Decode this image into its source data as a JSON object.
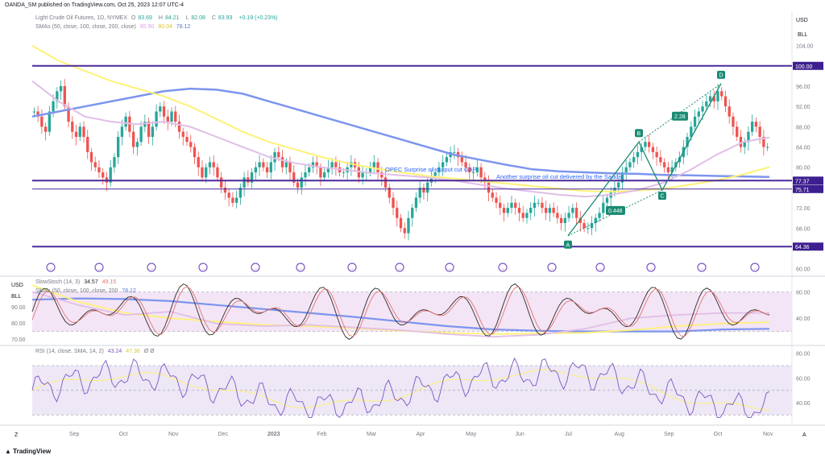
{
  "header": {
    "publisher": "OANDA_SM published on TradingView.com, Oct 25, 2023 12:07 UTC-4"
  },
  "main_pane": {
    "title": "Light Crude Oil Futures, 1D, NYMEX",
    "ohlc": {
      "o_label": "O",
      "o": "83.69",
      "h_label": "H",
      "h": "84.21",
      "l_label": "L",
      "l": "82.08",
      "c_label": "C",
      "c": "83.93",
      "change": "+0.19 (+0.23%)"
    },
    "sma_legend": {
      "label": "SMAs (50, close, 100, close, 200, close)",
      "v1": "85.90",
      "v2": "80.04",
      "v3": "78.12"
    },
    "currency": "USD",
    "unit": "BLL"
  },
  "stoch_pane": {
    "label": "SlowStoch (14, 3)",
    "k": "34.57",
    "d": "49.15",
    "sma_label": "SMAs (50, close, 100, close, 200",
    "sma_value": "78.12",
    "currency": "USD",
    "unit": "BLL"
  },
  "rsi_pane": {
    "label": "RSI (14, close, SMA, 14, 2)",
    "v1": "43.24",
    "v2": "47.36",
    "extra": "Ø Ø"
  },
  "footer": {
    "brand": "TradingView"
  },
  "corner": {
    "left": "Z",
    "right": "A"
  },
  "colors": {
    "up": "#26a69a",
    "down": "#ef5350",
    "sma50": "#e1bee7",
    "sma100": "#fff176",
    "sma200": "#7c95ee",
    "level": "#4a2a9a",
    "level_label_bg": "#3d1f8f",
    "rsi": "#7e57c2",
    "stoch_k": "#2b2b2b",
    "stoch_d": "#e57373",
    "accent": "#1a8a73"
  },
  "chart_data": [
    {
      "type": "candlestick",
      "title": "Light Crude Oil Futures, 1D, NYMEX",
      "x_ticks": [
        "Sep",
        "Oct",
        "Nov",
        "Dec",
        "2023",
        "Feb",
        "Mar",
        "Apr",
        "May",
        "Jun",
        "Jul",
        "Aug",
        "Sep",
        "Oct",
        "Nov"
      ],
      "y_ticks": [
        104.0,
        100.0,
        96.0,
        92.0,
        88.0,
        84.0,
        80.0,
        76.0,
        72.0,
        68.0,
        64.0,
        60.0
      ],
      "ylim": [
        59,
        106
      ],
      "close_path": [
        91,
        90,
        88,
        87,
        91,
        93,
        95,
        96,
        92,
        89,
        87,
        86,
        88,
        86,
        83,
        81,
        80,
        79,
        78,
        77,
        80,
        82,
        86,
        88,
        90,
        87,
        84,
        85,
        88,
        89,
        86,
        88,
        91,
        92,
        90,
        89,
        91,
        89,
        87,
        86,
        85,
        84,
        82,
        80,
        78,
        80,
        81,
        80,
        78,
        76,
        75,
        74,
        73,
        74,
        76,
        78,
        77,
        79,
        80,
        81,
        80,
        79,
        81,
        83,
        82,
        80,
        81,
        79,
        77,
        76,
        78,
        79,
        80,
        81,
        80,
        78,
        79,
        80,
        81,
        80,
        79,
        79,
        80,
        81,
        80,
        78,
        79,
        79,
        80,
        81,
        79,
        78,
        76,
        74,
        72,
        70,
        68,
        67,
        70,
        72,
        74,
        76,
        75,
        77,
        78,
        79,
        80,
        81,
        82,
        83,
        83,
        82,
        81,
        80,
        79,
        79,
        80,
        78,
        77,
        75,
        74,
        73,
        72,
        71,
        72,
        73,
        72,
        71,
        70,
        71,
        72,
        73,
        73,
        72,
        71,
        72,
        71,
        70,
        69,
        70,
        71,
        72,
        70,
        69,
        68,
        68,
        69,
        70,
        71,
        73,
        74,
        75,
        76,
        77,
        79,
        80,
        81,
        82,
        83,
        84,
        85,
        84,
        83,
        82,
        81,
        80,
        79,
        80,
        81,
        82,
        84,
        86,
        88,
        90,
        91,
        92,
        93,
        94,
        93,
        95,
        94,
        92,
        90,
        88,
        86,
        84,
        85,
        87,
        89,
        88,
        86,
        84,
        84
      ],
      "levels": [
        {
          "value": 100.0,
          "label": "100.00",
          "style": "solid"
        },
        {
          "value": 77.37,
          "label": "77.37",
          "style": "solid"
        },
        {
          "value": 75.71,
          "label": "75.71",
          "style": "solid"
        },
        {
          "value": 64.36,
          "label": "64.36",
          "style": "solid"
        }
      ],
      "price_labels": [
        "91.00"
      ],
      "series": [
        {
          "name": "SMA 50",
          "last": 85.9
        },
        {
          "name": "SMA 100",
          "last": 80.04
        },
        {
          "name": "SMA 200",
          "last": 78.12
        }
      ],
      "annotations": [
        {
          "text": "OPEC Surprise oil output cut GAP"
        },
        {
          "text": "Another surprise oil cut delivered by the Saudis"
        },
        {
          "text": "0.448"
        },
        {
          "text": "2.28"
        },
        {
          "text": "A"
        },
        {
          "text": "B"
        },
        {
          "text": "C"
        },
        {
          "text": "D"
        }
      ]
    },
    {
      "type": "line",
      "title": "SlowStoch (14, 3)",
      "y_ticks": [
        80.0,
        40.0
      ],
      "left_ticks": [
        90.0,
        80.0,
        70.0
      ],
      "ylim": [
        0,
        100
      ],
      "band": [
        20,
        80
      ],
      "series": [
        {
          "name": "%K",
          "last": 34.57
        },
        {
          "name": "%D",
          "last": 49.15
        }
      ]
    },
    {
      "type": "line",
      "title": "RSI (14, close, SMA, 14, 2)",
      "y_ticks": [
        80.0,
        60.0,
        40.0
      ],
      "ylim": [
        25,
        85
      ],
      "band": [
        30,
        70
      ],
      "series": [
        {
          "name": "RSI",
          "last": 43.24
        },
        {
          "name": "RSI SMA",
          "last": 47.36
        }
      ]
    }
  ]
}
